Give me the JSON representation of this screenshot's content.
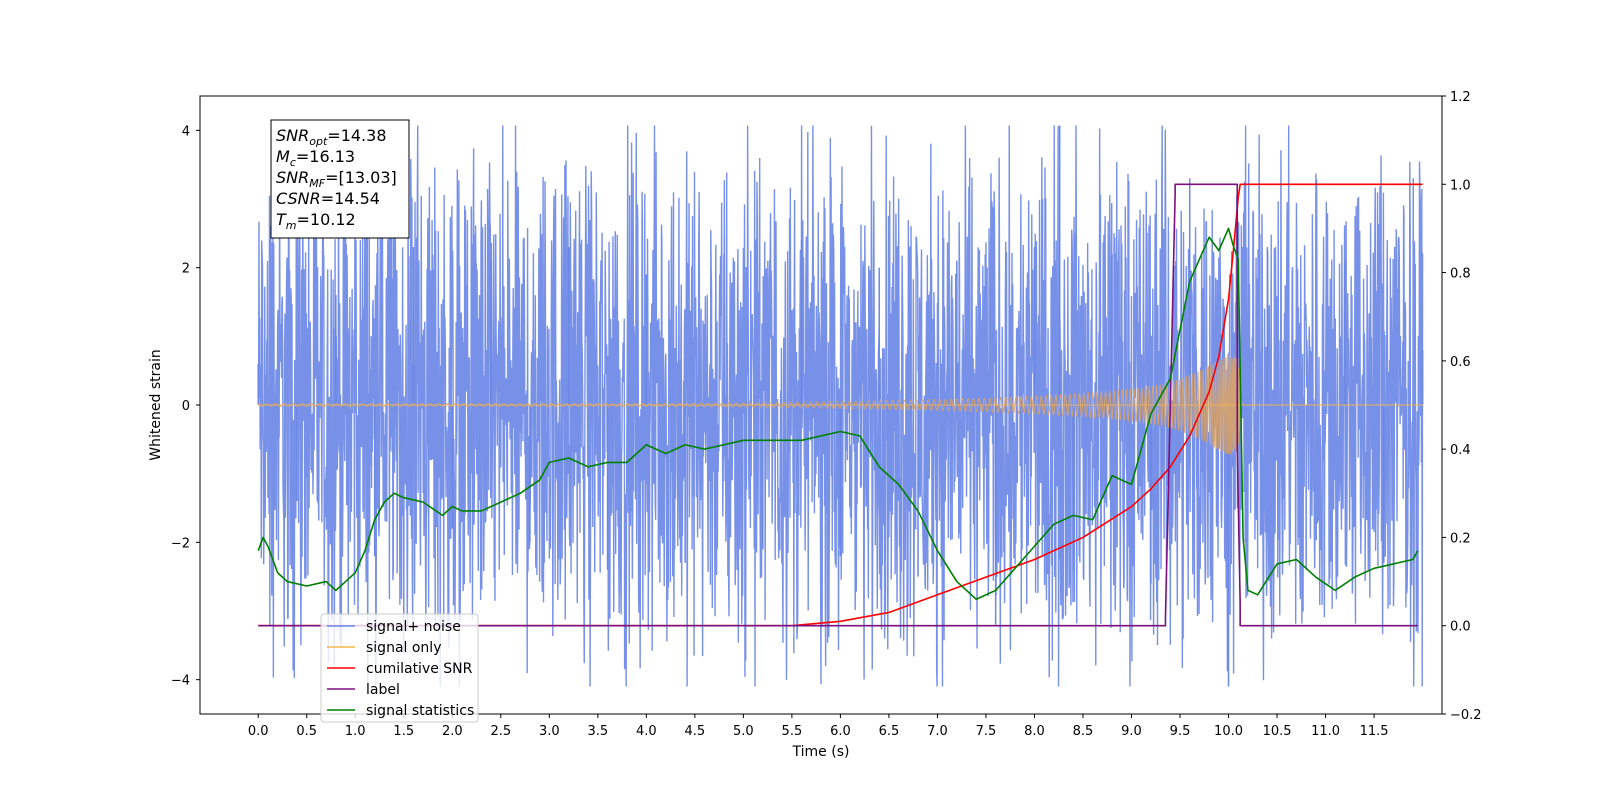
{
  "chart_data": {
    "type": "line",
    "title": "",
    "xlabel": "Time (s)",
    "ylabel": "Whitened strain",
    "y2label": "",
    "xlim": [
      -0.6,
      12.2
    ],
    "ylim": [
      -4.5,
      4.5
    ],
    "y2lim": [
      -0.2,
      1.2
    ],
    "x_ticks": [
      "0.0",
      "0.5",
      "1.0",
      "1.5",
      "2.0",
      "2.5",
      "3.0",
      "3.5",
      "4.0",
      "4.5",
      "5.0",
      "5.5",
      "6.0",
      "6.5",
      "7.0",
      "7.5",
      "8.0",
      "8.5",
      "9.0",
      "9.5",
      "10.0",
      "10.5",
      "11.0",
      "11.5"
    ],
    "y_ticks": [
      "4",
      "2",
      "0",
      "−2",
      "−4"
    ],
    "y2_ticks": [
      "1.2",
      "1.0",
      "0.8",
      "0.6",
      "0.4",
      "0.2",
      "0.0",
      "−0.2"
    ],
    "legend_position": "lower-left",
    "grid": false,
    "annotation": {
      "lines": [
        {
          "base": "SNR",
          "sub": "opt",
          "rest": "=14.38"
        },
        {
          "base": "M",
          "sub": "c",
          "rest": "=16.13"
        },
        {
          "base": "SNR",
          "sub": "MF",
          "rest": "=[13.03]"
        },
        {
          "base": "CSNR",
          "sub": "",
          "rest": "=14.54"
        },
        {
          "base": "T",
          "sub": "m",
          "rest": "=10.12"
        }
      ]
    },
    "noise_hint": {
      "x_start": 0.0,
      "x_end": 12.0,
      "typical_amplitude": 2.3,
      "max_peak": 4.07,
      "min_trough": -4.1
    },
    "signal_envelope": {
      "x": [
        0,
        2,
        4,
        5,
        6,
        7,
        7.5,
        8,
        8.5,
        9,
        9.3,
        9.5,
        9.7,
        9.9,
        10.0,
        10.1,
        10.12,
        10.14,
        12.0
      ],
      "amplitude": [
        0.02,
        0.02,
        0.02,
        0.03,
        0.05,
        0.08,
        0.1,
        0.13,
        0.17,
        0.23,
        0.3,
        0.38,
        0.5,
        0.65,
        0.75,
        0.68,
        0.25,
        0.0,
        0.0
      ]
    },
    "series": [
      {
        "name": "signal+ noise",
        "axis": "left",
        "color": "#6b87e6",
        "x": [
          0.0,
          0.4,
          0.8,
          1.2,
          1.6,
          2.0,
          2.4,
          2.8,
          3.2,
          3.6,
          4.0,
          4.4,
          4.8,
          5.2,
          5.6,
          6.0,
          6.4,
          6.8,
          7.2,
          7.6,
          8.0,
          8.26,
          8.4,
          8.8,
          9.2,
          9.6,
          10.0,
          10.4,
          10.8,
          11.2,
          11.6,
          12.0
        ],
        "y": [
          0.6,
          -1.4,
          1.6,
          -2.2,
          2.3,
          -1.8,
          2.1,
          -2.0,
          2.3,
          -2.4,
          1.9,
          -2.3,
          2.2,
          -2.1,
          2.4,
          -2.2,
          2.0,
          -2.5,
          2.1,
          -3.2,
          2.3,
          4.07,
          -2.4,
          2.2,
          -2.6,
          3.3,
          -4.1,
          2.3,
          -2.4,
          2.1,
          -2.3,
          0.8
        ]
      },
      {
        "name": "signal only",
        "axis": "left",
        "color": "#f6b64b",
        "x": [
          0.0,
          5.0,
          8.0,
          9.0,
          9.5,
          9.8,
          10.0,
          10.12,
          10.15,
          12.0
        ],
        "y": [
          0.0,
          0.0,
          0.0,
          0.0,
          0.0,
          0.0,
          0.0,
          0.0,
          0.0,
          0.0
        ]
      },
      {
        "name": "cumilative SNR",
        "axis": "right",
        "color": "#ff0000",
        "x": [
          0.0,
          5.5,
          6.0,
          6.5,
          7.0,
          7.5,
          8.0,
          8.5,
          9.0,
          9.2,
          9.4,
          9.6,
          9.8,
          9.9,
          10.0,
          10.05,
          10.1,
          10.12,
          12.0
        ],
        "y": [
          0.0,
          0.0,
          0.01,
          0.03,
          0.07,
          0.11,
          0.15,
          0.2,
          0.27,
          0.31,
          0.36,
          0.43,
          0.53,
          0.61,
          0.74,
          0.85,
          0.97,
          1.0,
          1.0
        ]
      },
      {
        "name": "label",
        "axis": "right",
        "color": "#7b0f7b",
        "x": [
          0.0,
          9.35,
          9.35,
          9.45,
          9.45,
          10.09,
          10.09,
          10.12,
          10.12,
          11.95
        ],
        "y": [
          0.0,
          0.0,
          0.02,
          0.98,
          1.0,
          1.0,
          0.4,
          0.05,
          0.0,
          0.0
        ]
      },
      {
        "name": "signal statistics",
        "axis": "right",
        "color": "#008000",
        "x": [
          0.0,
          0.05,
          0.1,
          0.2,
          0.3,
          0.5,
          0.7,
          0.8,
          0.9,
          1.0,
          1.1,
          1.2,
          1.3,
          1.4,
          1.5,
          1.7,
          1.9,
          2.0,
          2.1,
          2.3,
          2.5,
          2.7,
          2.9,
          3.0,
          3.2,
          3.4,
          3.6,
          3.8,
          4.0,
          4.2,
          4.4,
          4.6,
          4.8,
          5.0,
          5.2,
          5.4,
          5.6,
          5.8,
          6.0,
          6.2,
          6.4,
          6.6,
          6.8,
          7.0,
          7.2,
          7.4,
          7.6,
          7.8,
          8.0,
          8.2,
          8.4,
          8.6,
          8.8,
          9.0,
          9.2,
          9.4,
          9.6,
          9.7,
          9.8,
          9.9,
          10.0,
          10.05,
          10.1,
          10.15,
          10.2,
          10.3,
          10.5,
          10.7,
          10.9,
          11.1,
          11.3,
          11.5,
          11.7,
          11.9,
          11.95
        ],
        "y": [
          0.17,
          0.2,
          0.18,
          0.12,
          0.1,
          0.09,
          0.1,
          0.08,
          0.1,
          0.12,
          0.17,
          0.24,
          0.28,
          0.3,
          0.29,
          0.28,
          0.25,
          0.27,
          0.26,
          0.26,
          0.28,
          0.3,
          0.33,
          0.37,
          0.38,
          0.36,
          0.37,
          0.37,
          0.41,
          0.39,
          0.41,
          0.4,
          0.41,
          0.42,
          0.42,
          0.42,
          0.42,
          0.43,
          0.44,
          0.43,
          0.36,
          0.32,
          0.26,
          0.17,
          0.1,
          0.06,
          0.08,
          0.13,
          0.18,
          0.23,
          0.25,
          0.24,
          0.34,
          0.32,
          0.48,
          0.56,
          0.78,
          0.83,
          0.88,
          0.85,
          0.9,
          0.86,
          0.83,
          0.2,
          0.08,
          0.07,
          0.14,
          0.15,
          0.11,
          0.08,
          0.11,
          0.13,
          0.14,
          0.15,
          0.17
        ]
      }
    ]
  }
}
